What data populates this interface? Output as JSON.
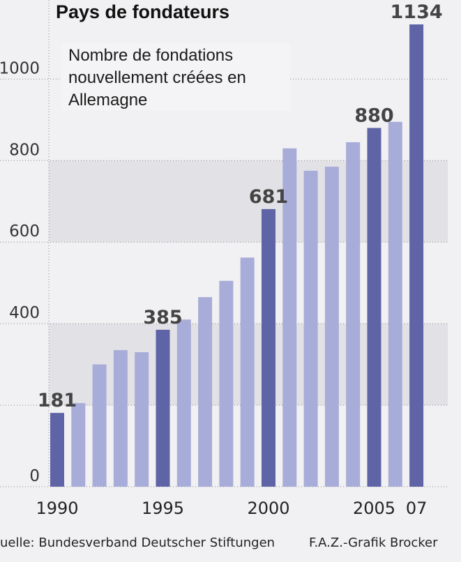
{
  "chart_data": {
    "type": "bar",
    "title": "Pays de fondateurs",
    "subtitle": "Nombre de fondations nouvellement créées en Allemagne",
    "subtitle_lines": [
      "Nombre de fondations",
      "nouvellement créées en",
      "Allemagne"
    ],
    "categories": [
      "1990",
      "1991",
      "1992",
      "1993",
      "1994",
      "1995",
      "1996",
      "1997",
      "1998",
      "1999",
      "2000",
      "2001",
      "2002",
      "2003",
      "2004",
      "2005",
      "2006",
      "2007"
    ],
    "x_tick_labels": [
      {
        "category": "1990",
        "label": "1990"
      },
      {
        "category": "1995",
        "label": "1995"
      },
      {
        "category": "2000",
        "label": "2000"
      },
      {
        "category": "2005",
        "label": "2005"
      },
      {
        "category": "2007",
        "label": "07"
      }
    ],
    "values": [
      181,
      205,
      300,
      335,
      330,
      385,
      410,
      465,
      505,
      562,
      681,
      830,
      775,
      785,
      845,
      880,
      895,
      1134
    ],
    "highlighted": [
      "1990",
      "1995",
      "2000",
      "2005",
      "2007"
    ],
    "data_labels": [
      {
        "category": "1990",
        "label": "181"
      },
      {
        "category": "1995",
        "label": "385"
      },
      {
        "category": "2000",
        "label": "681"
      },
      {
        "category": "2005",
        "label": "880"
      },
      {
        "category": "2007",
        "label": "1134"
      }
    ],
    "yticks": [
      0,
      200,
      400,
      600,
      800,
      1000
    ],
    "ytick_labels": [
      "0",
      "",
      "400",
      "600",
      "800",
      "1000"
    ],
    "ylim": [
      0,
      1134
    ],
    "grid": true,
    "colors": {
      "bar": "#a8acd8",
      "bar_highlight": "#5f64a6",
      "band": "#e2e2e6",
      "background": "#f1f1f3",
      "grid": "#888888"
    },
    "source": "uelle: Bundesverband Deutscher Stiftungen",
    "credit": "F.A.Z.-Grafik Brocker"
  }
}
